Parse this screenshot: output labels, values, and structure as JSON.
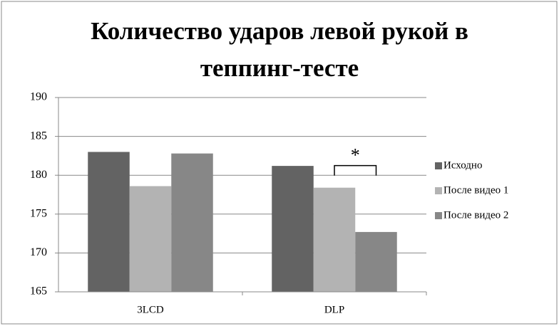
{
  "chart_data": {
    "type": "bar",
    "title": "Количество ударов левой рукой в теппинг-тесте",
    "categories": [
      "3LCD",
      "DLP"
    ],
    "series": [
      {
        "name": "Исходно",
        "color": "#636363",
        "values": [
          183.0,
          181.2
        ]
      },
      {
        "name": "После видео 1",
        "color": "#b3b3b3",
        "values": [
          178.6,
          178.4
        ]
      },
      {
        "name": "После видео 2",
        "color": "#878787",
        "values": [
          182.8,
          172.7
        ]
      }
    ],
    "ylim": [
      165,
      190
    ],
    "yticks": [
      165,
      170,
      175,
      180,
      185,
      190
    ],
    "grid": true,
    "legend": "right",
    "annotation": "*"
  }
}
